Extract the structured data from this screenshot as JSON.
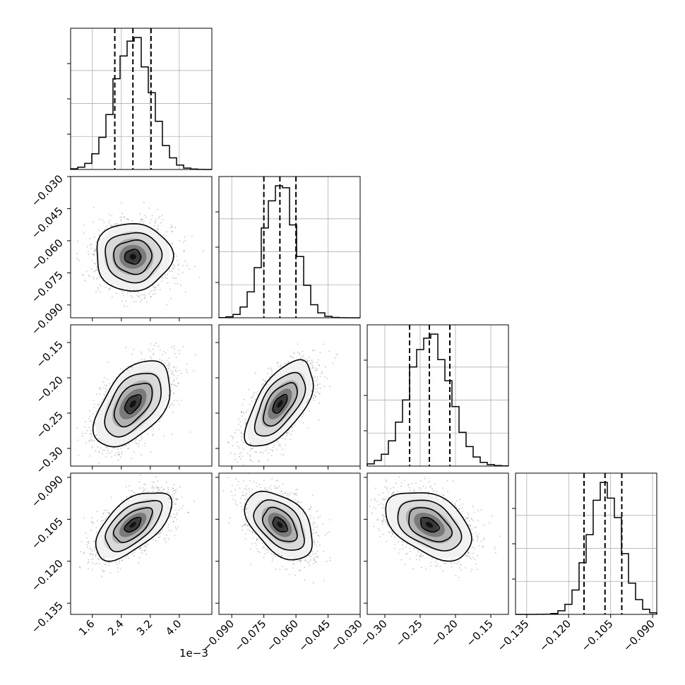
{
  "figure": {
    "x_offset_label": "1e−3",
    "colors": {
      "axes": "#000000",
      "grid": "#b0b0b0",
      "scatter": "#000000",
      "quantile": "#000000"
    }
  },
  "chart_data": {
    "type": "corner",
    "parameters": [
      {
        "name": "",
        "range": [
          1.0,
          4.9
        ],
        "ticks": [
          1.6,
          2.4,
          3.2,
          4.0
        ],
        "tick_labels": [
          "1.6",
          "2.4",
          "3.2",
          "4.0"
        ],
        "display_scale": 0.001,
        "mean": 2.72,
        "std": 0.5,
        "quantiles": [
          2.22,
          2.72,
          3.22
        ]
      },
      {
        "name": "",
        "range": [
          -0.096,
          -0.03
        ],
        "ticks": [
          -0.09,
          -0.075,
          -0.06,
          -0.045,
          -0.03
        ],
        "tick_labels": [
          "−0.090",
          "−0.075",
          "−0.060",
          "−0.045",
          "−0.030"
        ],
        "display_scale": 1,
        "mean": -0.0675,
        "std": 0.0075,
        "quantiles": [
          -0.075,
          -0.0675,
          -0.06
        ]
      },
      {
        "name": "",
        "range": [
          -0.325,
          -0.125
        ],
        "ticks": [
          -0.3,
          -0.25,
          -0.2,
          -0.15
        ],
        "tick_labels": [
          "−0.30",
          "−0.25",
          "−0.20",
          "−0.15"
        ],
        "display_scale": 1,
        "mean": -0.237,
        "std": 0.029,
        "quantiles": [
          -0.265,
          -0.237,
          -0.208
        ]
      },
      {
        "name": "",
        "range": [
          -0.139,
          -0.0885
        ],
        "ticks": [
          -0.135,
          -0.12,
          -0.105,
          -0.09
        ],
        "tick_labels": [
          "−0.135",
          "−0.120",
          "−0.105",
          "−0.090"
        ],
        "display_scale": 1,
        "mean": -0.107,
        "std": 0.0058,
        "quantiles": [
          -0.1145,
          -0.107,
          -0.101
        ]
      }
    ],
    "correlations": [
      [
        1,
        0,
        0.5,
        0.6
      ],
      [
        0,
        1,
        0.62,
        -0.45
      ],
      [
        0.5,
        0.62,
        1,
        -0.42
      ],
      [
        0.6,
        -0.45,
        -0.42,
        1
      ]
    ],
    "histogram_bins": 20,
    "contour_levels": [
      0.5,
      1.0,
      1.5,
      2.0
    ],
    "grid": true,
    "quantile_lines": "dashed"
  }
}
